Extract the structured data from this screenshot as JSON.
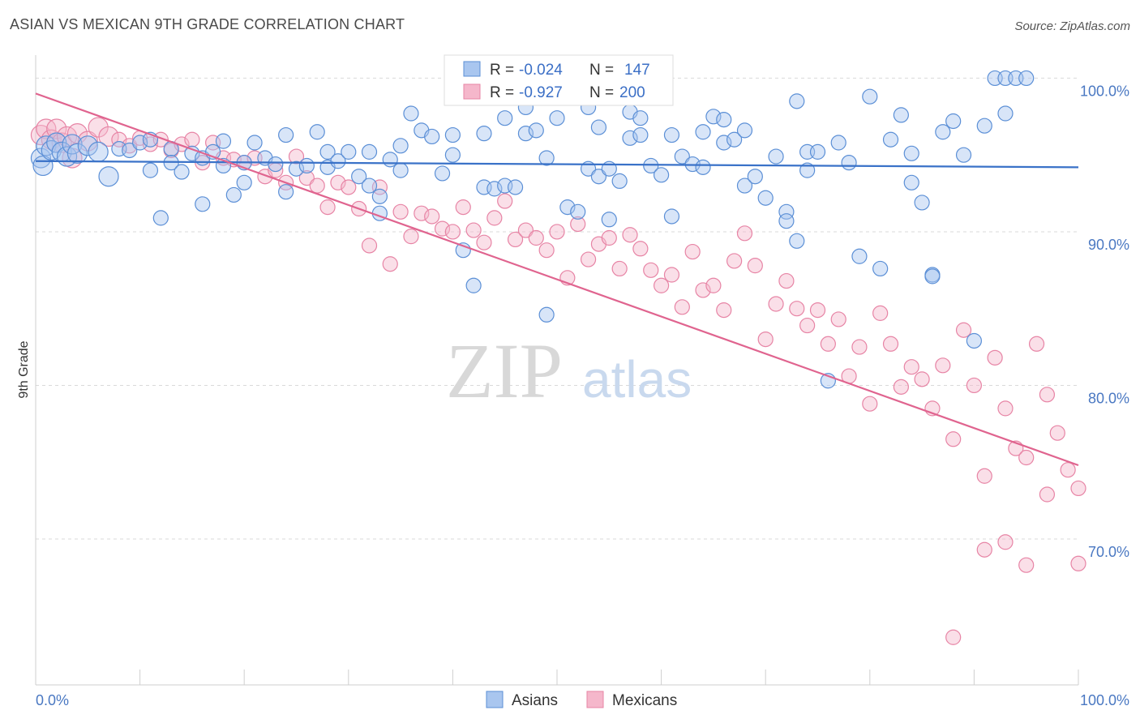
{
  "header": {
    "title": "ASIAN VS MEXICAN 9TH GRADE CORRELATION CHART",
    "source": "Source: ZipAtlas.com"
  },
  "watermark": {
    "zip": "ZIP",
    "atlas": "atlas"
  },
  "colors": {
    "asian_fill": "#a9c6ef",
    "asian_stroke": "#5b8fd6",
    "asian_line": "#3a72c8",
    "mexican_fill": "#f5b7cb",
    "mexican_stroke": "#e784a5",
    "mexican_line": "#e0648f",
    "tick_text": "#4a78c2",
    "grid": "#d9d9d9"
  },
  "legend": {
    "rows": [
      {
        "r_label": "R =",
        "r_value": "-0.024",
        "n_label": "N =",
        "n_value": "147"
      },
      {
        "r_label": "R =",
        "r_value": "-0.927",
        "n_label": "N =",
        "n_value": "200"
      }
    ]
  },
  "chart_data": {
    "type": "scatter",
    "xlabel": "",
    "ylabel": "9th Grade",
    "xlim": [
      0,
      100
    ],
    "ylim": [
      60.5,
      101.5
    ],
    "x_tick_labels": [
      "0.0%",
      "100.0%"
    ],
    "y_ticks": [
      100,
      90,
      80,
      70
    ],
    "y_tick_labels": [
      "100.0%",
      "90.0%",
      "80.0%",
      "70.0%"
    ],
    "grid": "horizontal dashed",
    "legend_position": "top-center",
    "series": [
      {
        "name": "Asians",
        "trend": [
          [
            0,
            94.6
          ],
          [
            100,
            94.2
          ]
        ],
        "points": [
          [
            0.5,
            94.8
          ],
          [
            0.7,
            94.3
          ],
          [
            1,
            95.6
          ],
          [
            1.5,
            95.3
          ],
          [
            2,
            95.8
          ],
          [
            2.5,
            95.2
          ],
          [
            3,
            94.9
          ],
          [
            3.5,
            95.7
          ],
          [
            4,
            95.1
          ],
          [
            5,
            95.6
          ],
          [
            6,
            95.2
          ],
          [
            7,
            93.6
          ],
          [
            8,
            95.4
          ],
          [
            9,
            95.3
          ],
          [
            10,
            95.8
          ],
          [
            11,
            96.0
          ],
          [
            11,
            94.0
          ],
          [
            12,
            90.9
          ],
          [
            13,
            95.4
          ],
          [
            13,
            94.5
          ],
          [
            14,
            93.9
          ],
          [
            15,
            95.1
          ],
          [
            16,
            91.8
          ],
          [
            16,
            94.8
          ],
          [
            17,
            95.2
          ],
          [
            18,
            95.9
          ],
          [
            18,
            94.3
          ],
          [
            19,
            92.4
          ],
          [
            20,
            94.5
          ],
          [
            20,
            93.2
          ],
          [
            21,
            95.8
          ],
          [
            22,
            94.8
          ],
          [
            23,
            94.4
          ],
          [
            24,
            96.3
          ],
          [
            24,
            92.6
          ],
          [
            25,
            94.1
          ],
          [
            26,
            94.3
          ],
          [
            27,
            96.5
          ],
          [
            28,
            95.2
          ],
          [
            28,
            94.2
          ],
          [
            29,
            94.6
          ],
          [
            30,
            95.2
          ],
          [
            31,
            93.6
          ],
          [
            32,
            95.2
          ],
          [
            32,
            93.0
          ],
          [
            33,
            92.3
          ],
          [
            33,
            91.2
          ],
          [
            34,
            94.7
          ],
          [
            35,
            95.6
          ],
          [
            35,
            94.0
          ],
          [
            36,
            97.7
          ],
          [
            37,
            96.6
          ],
          [
            38,
            96.2
          ],
          [
            39,
            93.8
          ],
          [
            40,
            96.3
          ],
          [
            40,
            95.0
          ],
          [
            41,
            88.8
          ],
          [
            42,
            86.5
          ],
          [
            43,
            92.9
          ],
          [
            43,
            96.4
          ],
          [
            44,
            92.8
          ],
          [
            45,
            93.0
          ],
          [
            45,
            97.4
          ],
          [
            46,
            92.9
          ],
          [
            47,
            96.4
          ],
          [
            47,
            98.1
          ],
          [
            48,
            96.6
          ],
          [
            49,
            94.8
          ],
          [
            49,
            84.6
          ],
          [
            50,
            97.4
          ],
          [
            51,
            91.6
          ],
          [
            52,
            91.3
          ],
          [
            53,
            98.1
          ],
          [
            53,
            94.1
          ],
          [
            54,
            96.8
          ],
          [
            54,
            93.6
          ],
          [
            55,
            90.8
          ],
          [
            55,
            94.1
          ],
          [
            56,
            93.3
          ],
          [
            57,
            96.1
          ],
          [
            57,
            97.8
          ],
          [
            58,
            96.3
          ],
          [
            58,
            97.4
          ],
          [
            59,
            94.3
          ],
          [
            60,
            93.7
          ],
          [
            61,
            96.3
          ],
          [
            61,
            91.0
          ],
          [
            62,
            94.9
          ],
          [
            63,
            94.4
          ],
          [
            64,
            96.5
          ],
          [
            64,
            94.2
          ],
          [
            65,
            97.5
          ],
          [
            66,
            95.8
          ],
          [
            66,
            97.3
          ],
          [
            67,
            96.0
          ],
          [
            68,
            96.6
          ],
          [
            68,
            93.0
          ],
          [
            69,
            93.6
          ],
          [
            70,
            92.2
          ],
          [
            71,
            94.9
          ],
          [
            72,
            91.3
          ],
          [
            72,
            90.7
          ],
          [
            73,
            89.4
          ],
          [
            73,
            98.5
          ],
          [
            74,
            95.2
          ],
          [
            74,
            94.0
          ],
          [
            75,
            95.2
          ],
          [
            76,
            80.3
          ],
          [
            77,
            95.8
          ],
          [
            78,
            94.5
          ],
          [
            79,
            88.4
          ],
          [
            80,
            98.8
          ],
          [
            81,
            87.6
          ],
          [
            82,
            96.0
          ],
          [
            83,
            97.6
          ],
          [
            84,
            95.1
          ],
          [
            84,
            93.2
          ],
          [
            85,
            91.9
          ],
          [
            86,
            87.2
          ],
          [
            86,
            87.1
          ],
          [
            87,
            96.5
          ],
          [
            88,
            97.2
          ],
          [
            89,
            95.0
          ],
          [
            90,
            82.9
          ],
          [
            91,
            96.9
          ],
          [
            92,
            100.0
          ],
          [
            93,
            97.7
          ],
          [
            93,
            100.0
          ],
          [
            94,
            100.0
          ],
          [
            95,
            100.0
          ]
        ]
      },
      {
        "name": "Mexicans",
        "trend": [
          [
            0,
            99.0
          ],
          [
            100,
            74.8
          ]
        ],
        "points": [
          [
            0.5,
            96.3
          ],
          [
            1,
            96.7
          ],
          [
            1.5,
            96.0
          ],
          [
            2,
            96.7
          ],
          [
            2.5,
            95.8
          ],
          [
            3,
            96.2
          ],
          [
            3.5,
            94.8
          ],
          [
            4,
            96.4
          ],
          [
            5,
            95.9
          ],
          [
            6,
            96.8
          ],
          [
            7,
            96.2
          ],
          [
            8,
            96.0
          ],
          [
            9,
            95.6
          ],
          [
            10,
            96.1
          ],
          [
            11,
            95.7
          ],
          [
            12,
            96.0
          ],
          [
            13,
            95.3
          ],
          [
            14,
            95.7
          ],
          [
            15,
            96.0
          ],
          [
            16,
            94.5
          ],
          [
            17,
            95.8
          ],
          [
            18,
            94.8
          ],
          [
            19,
            94.7
          ],
          [
            20,
            94.5
          ],
          [
            21,
            94.8
          ],
          [
            22,
            93.6
          ],
          [
            23,
            94.0
          ],
          [
            24,
            93.2
          ],
          [
            25,
            94.9
          ],
          [
            26,
            93.5
          ],
          [
            27,
            93.0
          ],
          [
            28,
            91.6
          ],
          [
            29,
            93.2
          ],
          [
            30,
            92.9
          ],
          [
            31,
            91.5
          ],
          [
            32,
            89.1
          ],
          [
            33,
            92.9
          ],
          [
            34,
            87.9
          ],
          [
            35,
            91.3
          ],
          [
            36,
            89.7
          ],
          [
            37,
            91.2
          ],
          [
            38,
            91.0
          ],
          [
            39,
            90.2
          ],
          [
            40,
            90.0
          ],
          [
            41,
            91.6
          ],
          [
            42,
            90.1
          ],
          [
            43,
            89.3
          ],
          [
            44,
            90.9
          ],
          [
            45,
            92.0
          ],
          [
            46,
            89.5
          ],
          [
            47,
            90.1
          ],
          [
            48,
            89.6
          ],
          [
            49,
            88.8
          ],
          [
            50,
            90.0
          ],
          [
            51,
            87.0
          ],
          [
            52,
            90.5
          ],
          [
            53,
            88.2
          ],
          [
            54,
            89.2
          ],
          [
            55,
            89.6
          ],
          [
            56,
            87.6
          ],
          [
            57,
            89.8
          ],
          [
            58,
            88.9
          ],
          [
            59,
            87.5
          ],
          [
            60,
            86.5
          ],
          [
            61,
            87.2
          ],
          [
            62,
            85.1
          ],
          [
            63,
            88.7
          ],
          [
            64,
            86.2
          ],
          [
            65,
            86.5
          ],
          [
            66,
            84.9
          ],
          [
            67,
            88.1
          ],
          [
            68,
            89.9
          ],
          [
            69,
            87.8
          ],
          [
            70,
            83.0
          ],
          [
            71,
            85.3
          ],
          [
            72,
            86.8
          ],
          [
            73,
            85.0
          ],
          [
            74,
            83.9
          ],
          [
            75,
            84.9
          ],
          [
            76,
            82.7
          ],
          [
            77,
            84.3
          ],
          [
            78,
            80.6
          ],
          [
            79,
            82.5
          ],
          [
            80,
            78.8
          ],
          [
            81,
            84.7
          ],
          [
            82,
            82.7
          ],
          [
            83,
            79.9
          ],
          [
            84,
            81.2
          ],
          [
            85,
            80.4
          ],
          [
            86,
            78.5
          ],
          [
            87,
            81.3
          ],
          [
            88,
            76.5
          ],
          [
            89,
            83.6
          ],
          [
            90,
            80.0
          ],
          [
            91,
            74.1
          ],
          [
            92,
            81.8
          ],
          [
            93,
            78.5
          ],
          [
            94,
            75.9
          ],
          [
            95,
            75.3
          ],
          [
            96,
            82.7
          ],
          [
            97,
            79.4
          ],
          [
            98,
            76.9
          ],
          [
            99,
            74.5
          ],
          [
            100,
            73.3
          ],
          [
            100,
            68.4
          ],
          [
            95,
            68.3
          ],
          [
            93,
            69.8
          ],
          [
            91,
            69.3
          ],
          [
            88,
            63.6
          ],
          [
            97,
            72.9
          ]
        ]
      }
    ]
  },
  "bottom_legend": {
    "items": [
      {
        "label": "Asians"
      },
      {
        "label": "Mexicans"
      }
    ]
  }
}
